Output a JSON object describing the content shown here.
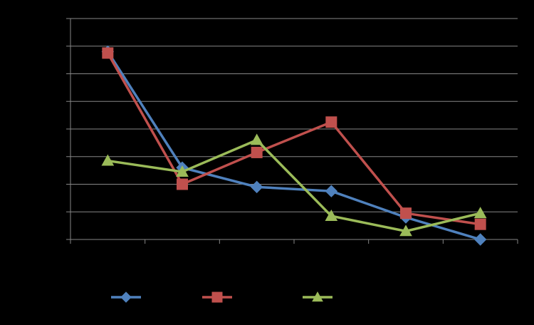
{
  "chart_data": {
    "type": "line",
    "title": "",
    "xlabel": "",
    "ylabel": "",
    "categories": [
      "",
      "",
      "",
      "",
      "",
      ""
    ],
    "ylim": [
      0,
      8
    ],
    "grid": true,
    "legend_position": "bottom",
    "series": [
      {
        "color": "#4F81BD",
        "marker": "diamond",
        "values": [
          6.8,
          2.6,
          1.9,
          1.75,
          0.8,
          0.0
        ]
      },
      {
        "color": "#C0504D",
        "marker": "square",
        "values": [
          6.75,
          2.0,
          3.15,
          4.25,
          0.95,
          0.55
        ]
      },
      {
        "color": "#9BBB59",
        "marker": "triangle",
        "values": [
          2.85,
          2.45,
          3.6,
          0.85,
          0.3,
          0.95
        ]
      }
    ]
  }
}
